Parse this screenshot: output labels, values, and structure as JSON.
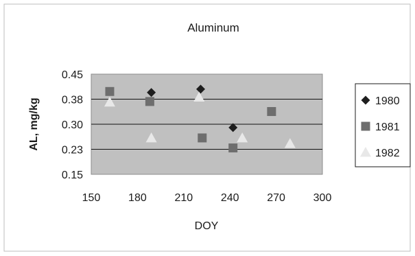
{
  "chart_data": {
    "type": "scatter",
    "title": "Aluminum",
    "xlabel": "DOY",
    "ylabel": "AL, mg/kg",
    "xlim": [
      150,
      300
    ],
    "ylim": [
      0.15,
      0.45
    ],
    "x_ticks": [
      "150",
      "180",
      "210",
      "240",
      "270",
      "300"
    ],
    "y_ticks": [
      "0.15",
      "0.23",
      "0.30",
      "0.38",
      "0.45"
    ],
    "grid": true,
    "legend_position": "right",
    "plot_background": "#c0c0c0",
    "series": [
      {
        "name": "1980",
        "marker": "diamond",
        "color": "#1e1e1e",
        "points": [
          {
            "x": 189,
            "y": 0.395
          },
          {
            "x": 221,
            "y": 0.405
          },
          {
            "x": 242,
            "y": 0.29
          }
        ]
      },
      {
        "name": "1981",
        "marker": "square",
        "color": "#6e6e6e",
        "points": [
          {
            "x": 162,
            "y": 0.398
          },
          {
            "x": 188,
            "y": 0.368
          },
          {
            "x": 222,
            "y": 0.259
          },
          {
            "x": 242,
            "y": 0.229
          },
          {
            "x": 267,
            "y": 0.338
          }
        ]
      },
      {
        "name": "1982",
        "marker": "triangle",
        "color": "#e8e8e8",
        "points": [
          {
            "x": 162,
            "y": 0.366
          },
          {
            "x": 189,
            "y": 0.259
          },
          {
            "x": 220,
            "y": 0.381
          },
          {
            "x": 248,
            "y": 0.259
          },
          {
            "x": 279,
            "y": 0.242
          }
        ]
      }
    ]
  }
}
